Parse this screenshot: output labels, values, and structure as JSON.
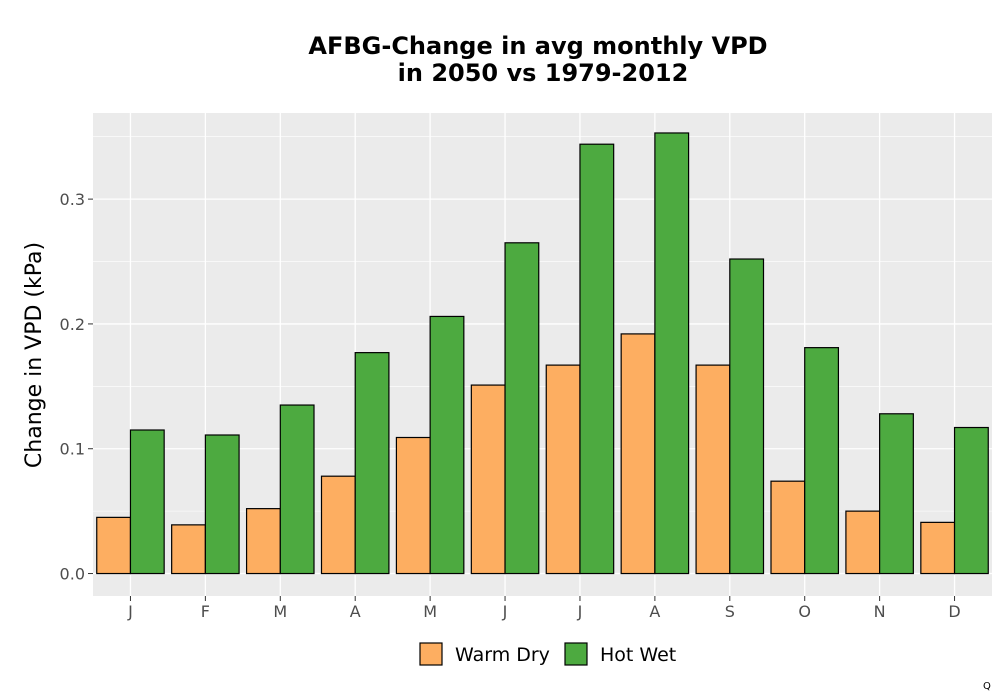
{
  "chart_data": {
    "type": "bar",
    "title": [
      "AFBG-Change in avg monthly VPD",
      "in 2050 vs 1979-2012"
    ],
    "xlabel": "",
    "ylabel": "Change in VPD (kPa)",
    "categories": [
      "J",
      "F",
      "M",
      "A",
      "M",
      "J",
      "J",
      "A",
      "S",
      "O",
      "N",
      "D"
    ],
    "series": [
      {
        "name": "Warm Dry",
        "color": "#fdae61",
        "values": [
          0.045,
          0.039,
          0.052,
          0.078,
          0.109,
          0.151,
          0.167,
          0.192,
          0.167,
          0.074,
          0.05,
          0.041
        ]
      },
      {
        "name": "Hot Wet",
        "color": "#4daa40",
        "values": [
          0.115,
          0.111,
          0.135,
          0.177,
          0.206,
          0.265,
          0.344,
          0.353,
          0.252,
          0.181,
          0.128,
          0.117
        ]
      }
    ],
    "yticks": [
      0.0,
      0.1,
      0.2,
      0.3
    ],
    "ytick_labels": [
      "0.0",
      "0.1",
      "0.2",
      "0.3"
    ],
    "ylim": [
      -0.018,
      0.369
    ],
    "grid": true,
    "legend_position": "bottom"
  },
  "corner_mark": "Q"
}
